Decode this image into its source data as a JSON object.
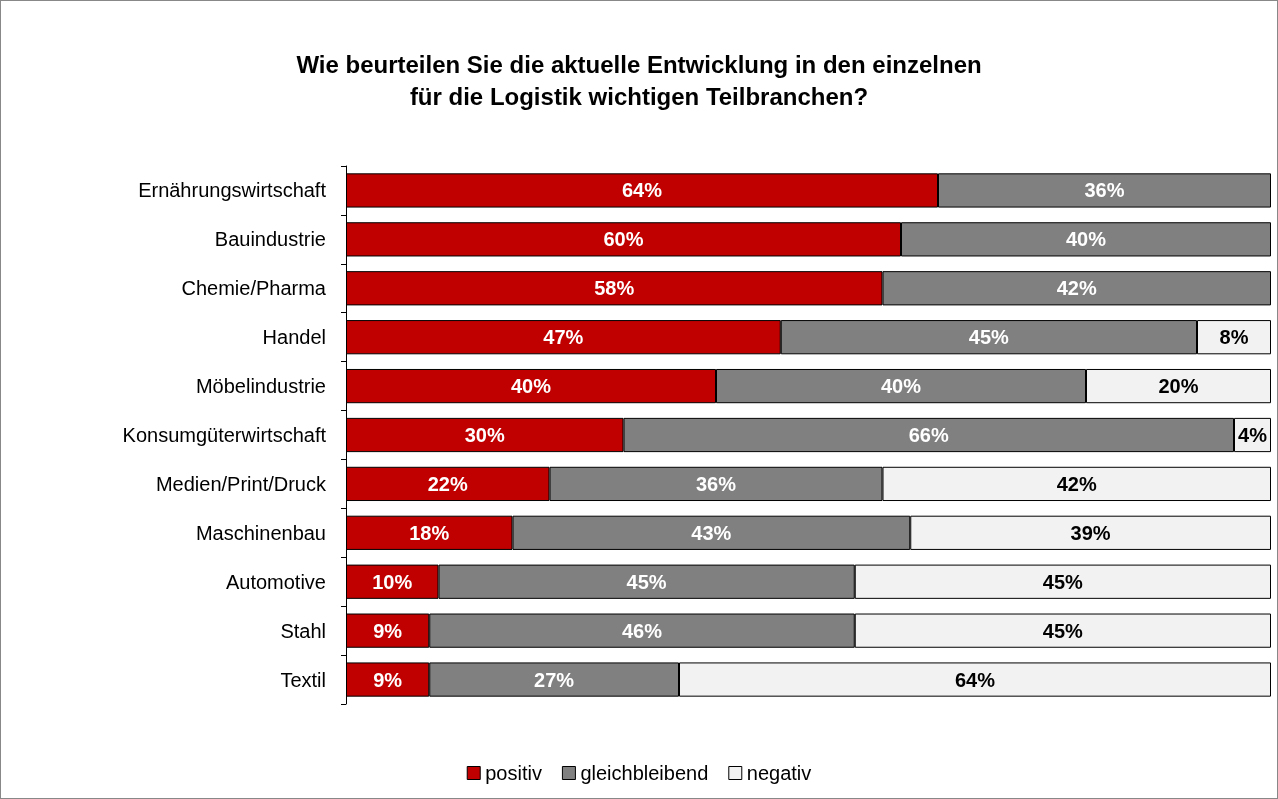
{
  "chart_data": {
    "type": "bar",
    "orientation": "horizontal",
    "stacked": true,
    "title": "Wie beurteilen Sie die aktuelle Entwicklung in den einzelnen\nfür die Logistik wichtigen Teilbranchen?",
    "categories": [
      "Ernährungswirtschaft",
      "Bauindustrie",
      "Chemie/Pharma",
      "Handel",
      "Möbelindustrie",
      "Konsumgüterwirtschaft",
      "Medien/Print/Druck",
      "Maschinenbau",
      "Automotive",
      "Stahl",
      "Textil"
    ],
    "series": [
      {
        "name": "positiv",
        "color": "#c00000",
        "values": [
          64,
          60,
          58,
          47,
          40,
          30,
          22,
          18,
          10,
          9,
          9
        ],
        "value_labels": [
          "64%",
          "60%",
          "58%",
          "47%",
          "40%",
          "30%",
          "22%",
          "18%",
          "10%",
          "9%",
          "9%"
        ]
      },
      {
        "name": "gleichbleibend",
        "color": "#808080",
        "values": [
          36,
          40,
          42,
          45,
          40,
          66,
          36,
          43,
          45,
          46,
          27
        ],
        "value_labels": [
          "36%",
          "40%",
          "42%",
          "45%",
          "40%",
          "66%",
          "36%",
          "43%",
          "45%",
          "46%",
          "27%"
        ]
      },
      {
        "name": "negativ",
        "color": "#f2f2f2",
        "values": [
          null,
          null,
          null,
          8,
          20,
          4,
          42,
          39,
          45,
          45,
          64
        ],
        "value_labels": [
          null,
          null,
          null,
          "8%",
          "20%",
          "4%",
          "42%",
          "39%",
          "45%",
          "45%",
          "64%"
        ]
      }
    ],
    "xlim": [
      0,
      100
    ],
    "tick_labels": "y",
    "grid": false,
    "legend": "bottom"
  }
}
